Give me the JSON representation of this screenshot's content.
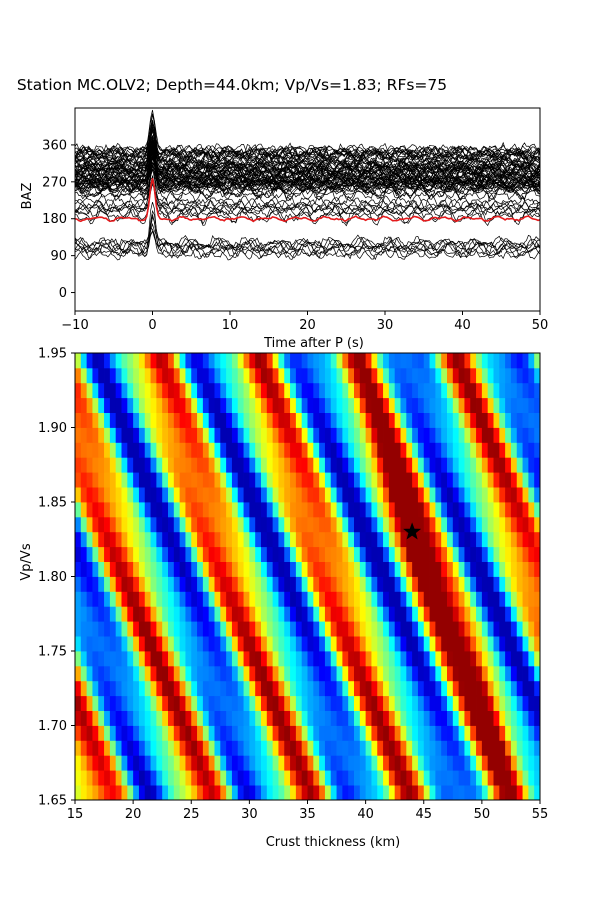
{
  "title": "Station MC.OLV2; Depth=44.0km; Vp/Vs=1.83; RFs=75",
  "chart_data": [
    {
      "type": "line",
      "xlabel": "Time after P (s)",
      "ylabel": "BAZ",
      "xlim": [
        -10,
        50
      ],
      "ylim": [
        -45,
        450
      ],
      "xticks": [
        "−10",
        "0",
        "10",
        "20",
        "30",
        "40",
        "50"
      ],
      "xtick_values": [
        -10,
        0,
        10,
        20,
        30,
        40,
        50
      ],
      "yticks": [
        "0",
        "90",
        "180",
        "270",
        "360"
      ],
      "ytick_values": [
        0,
        90,
        180,
        270,
        360
      ],
      "trace_count": 75,
      "trace_color": "#000000",
      "stack_baz": 180,
      "stack_color": "#e41a1c",
      "direct_p_time": 0
    },
    {
      "type": "heatmap",
      "xlabel": "Crust thickness (km)",
      "ylabel": "Vp/Vs",
      "xlim": [
        15,
        55
      ],
      "ylim": [
        1.65,
        1.95
      ],
      "xticks": [
        "15",
        "20",
        "25",
        "30",
        "35",
        "40",
        "45",
        "50",
        "55"
      ],
      "xtick_values": [
        15,
        20,
        25,
        30,
        35,
        40,
        45,
        50,
        55
      ],
      "yticks": [
        "1.65",
        "1.70",
        "1.75",
        "1.80",
        "1.85",
        "1.90",
        "1.95"
      ],
      "ytick_values": [
        1.65,
        1.7,
        1.75,
        1.8,
        1.85,
        1.9,
        1.95
      ],
      "colormap": "jet",
      "best_fit": {
        "thickness_km": 44.0,
        "vpvs": 1.83,
        "marker": "star"
      }
    }
  ]
}
